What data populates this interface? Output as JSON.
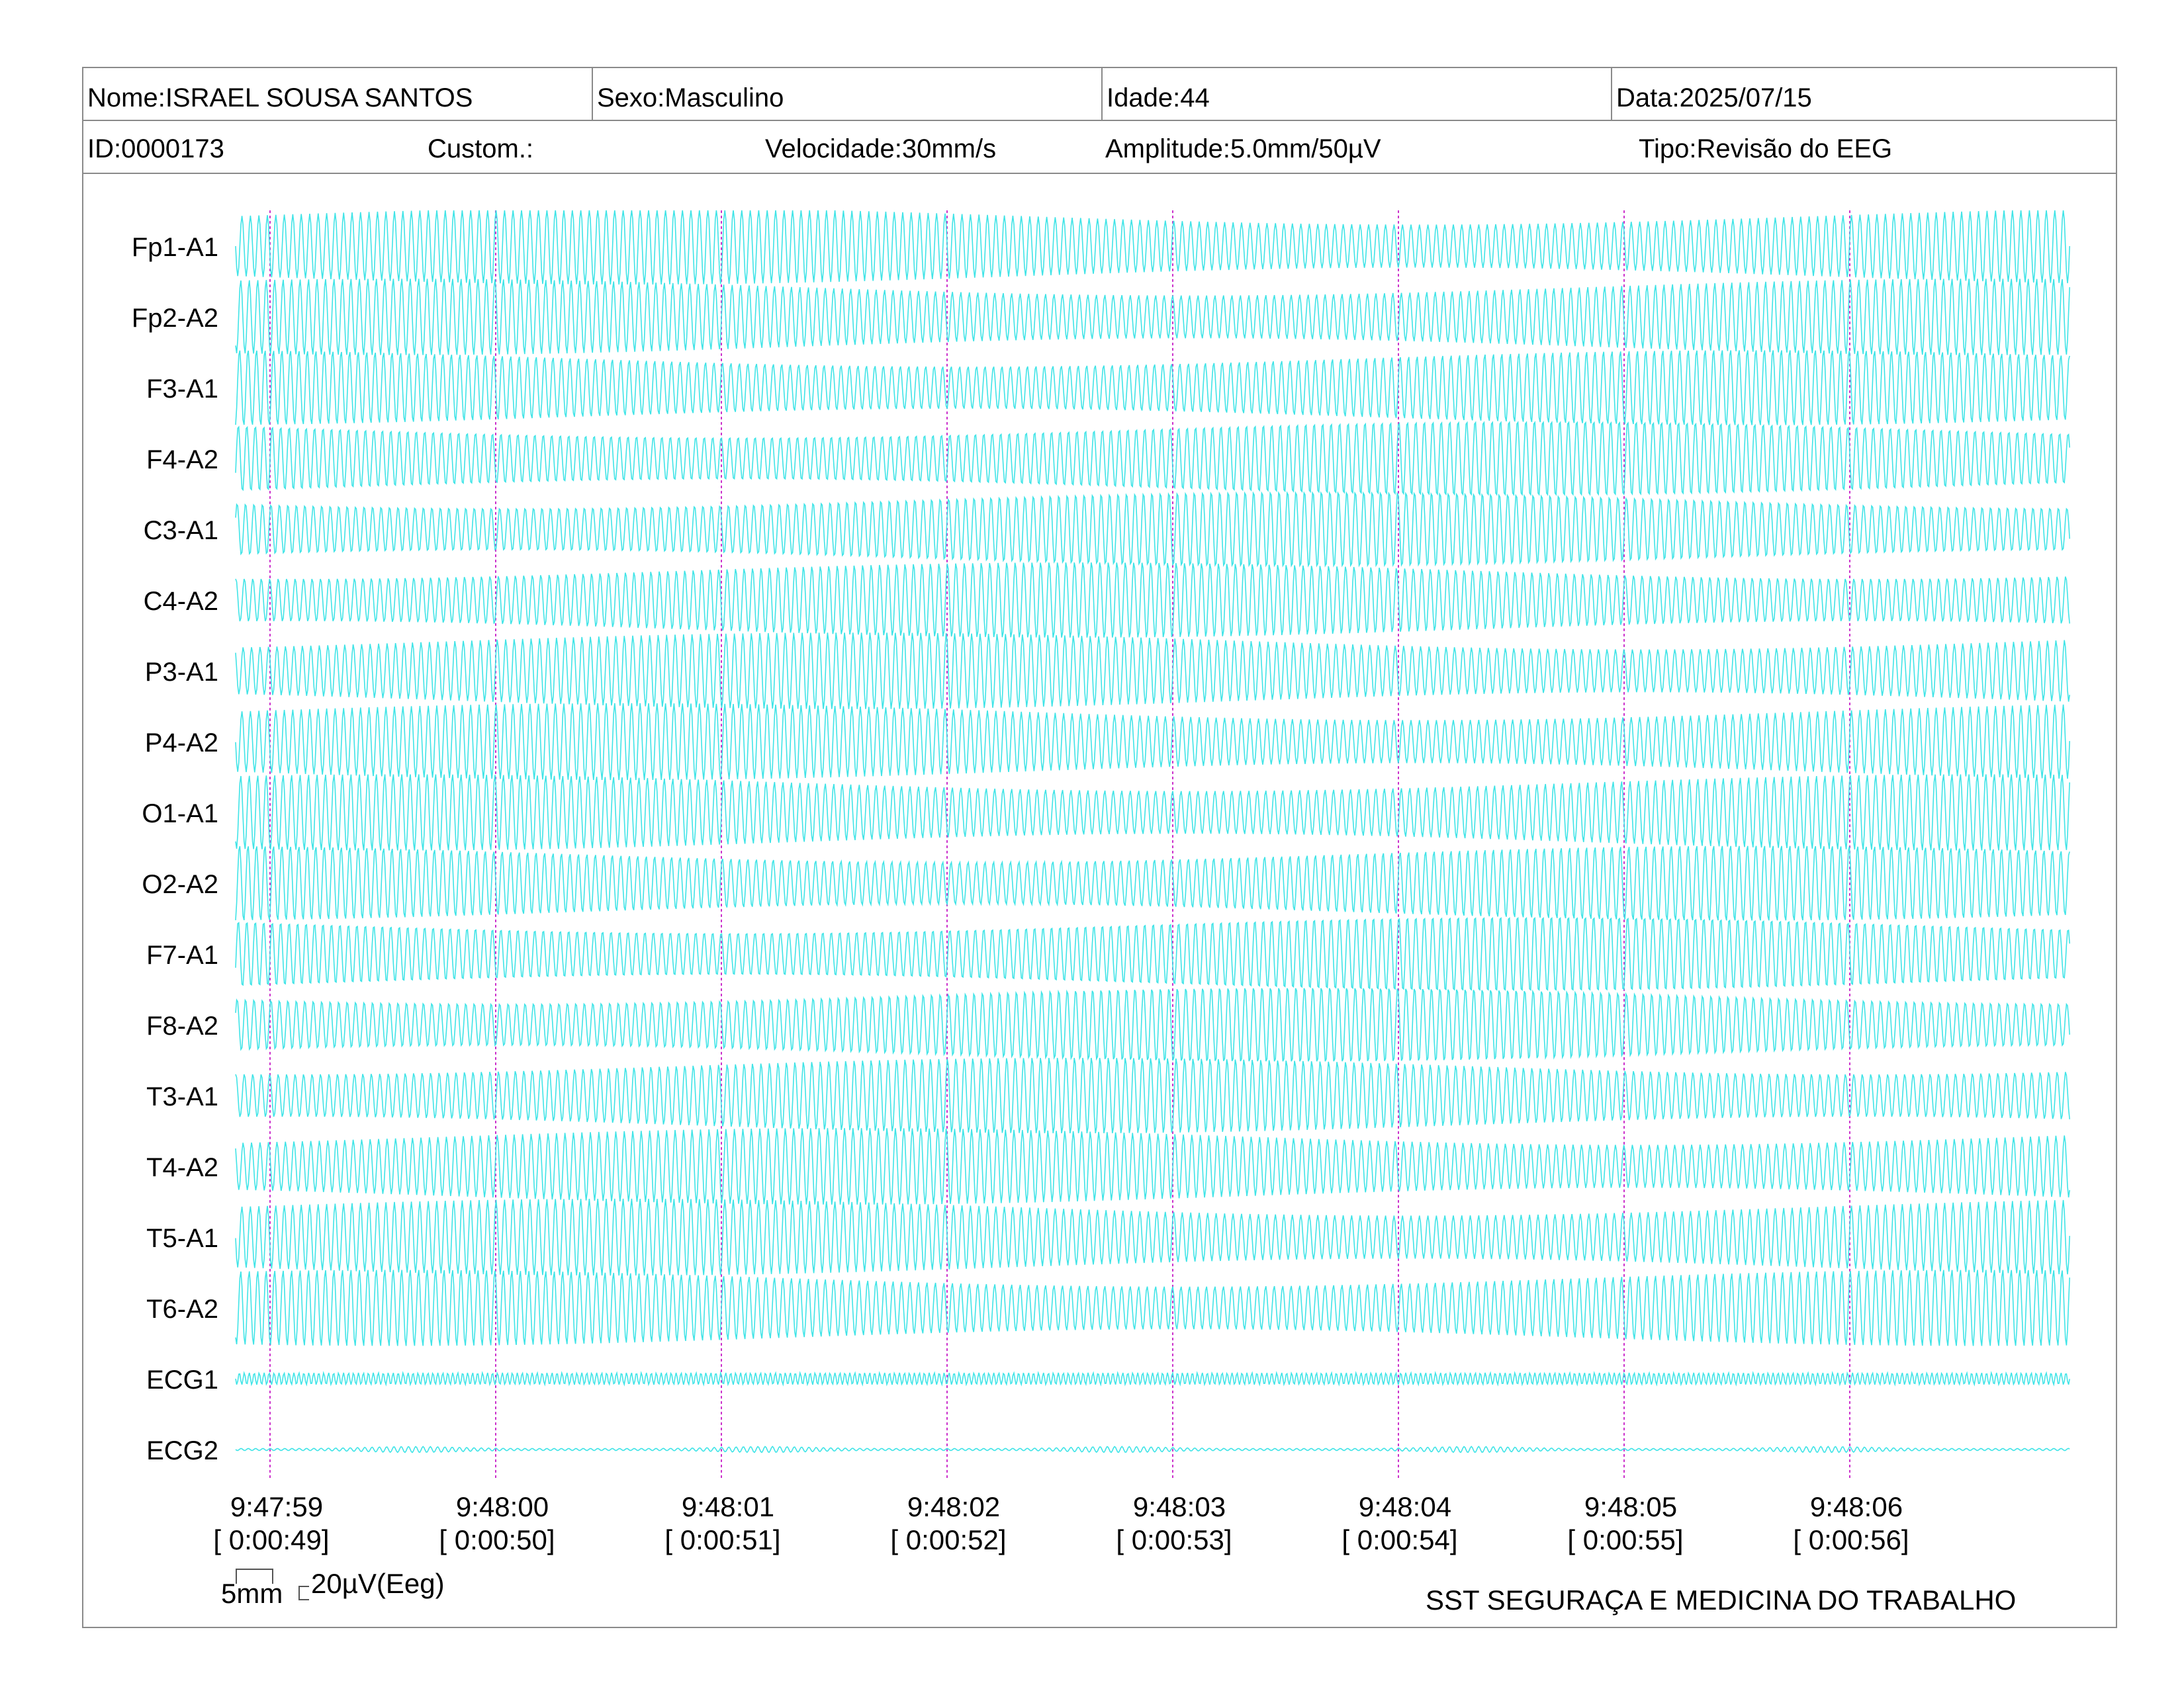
{
  "header": {
    "name": "Nome:ISRAEL SOUSA SANTOS",
    "sex": "Sexo:Masculino",
    "age": "Idade:44",
    "date": "Data:2025/07/15",
    "id": "ID:0000173",
    "custom": "Custom.:",
    "speed": "Velocidade:30mm/s",
    "amplitude": "Amplitude:5.0mm/50µV",
    "type": "Tipo:Revisão do EEG"
  },
  "footer": {
    "scale_time": "5mm",
    "scale_amp": "20µV(Eeg)",
    "organization": "SST SEGURAÇA E MEDICINA DO TRABALHO"
  },
  "colors": {
    "trace": "#36e3e6",
    "marker": "#cc33cc",
    "border": "#8a8a8a"
  },
  "chart_data": {
    "type": "line",
    "channels": [
      "Fp1-A1",
      "Fp2-A2",
      "F3-A1",
      "F4-A2",
      "C3-A1",
      "C4-A2",
      "P3-A1",
      "P4-A2",
      "O1-A1",
      "O2-A2",
      "F7-A1",
      "F8-A2",
      "T3-A1",
      "T4-A2",
      "T5-A1",
      "T6-A2",
      "ECG1",
      "ECG2"
    ],
    "time_markers": [
      {
        "clock": "9:47:59",
        "elapsed": "[ 0:00:49]"
      },
      {
        "clock": "9:48:00",
        "elapsed": "[ 0:00:50]"
      },
      {
        "clock": "9:48:01",
        "elapsed": "[ 0:00:51]"
      },
      {
        "clock": "9:48:02",
        "elapsed": "[ 0:00:52]"
      },
      {
        "clock": "9:48:03",
        "elapsed": "[ 0:00:53]"
      },
      {
        "clock": "9:48:04",
        "elapsed": "[ 0:00:54]"
      },
      {
        "clock": "9:48:05",
        "elapsed": "[ 0:00:55]"
      },
      {
        "clock": "9:48:06",
        "elapsed": "[ 0:00:56]"
      }
    ],
    "grid": false
  }
}
